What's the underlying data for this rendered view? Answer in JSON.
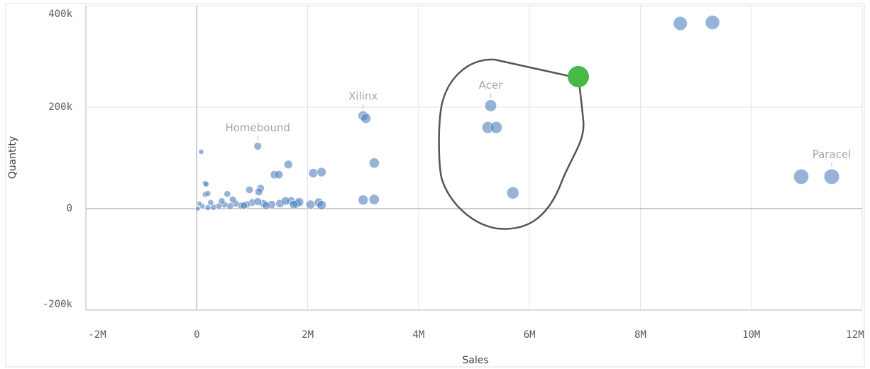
{
  "chart_data": {
    "type": "scatter",
    "x_label": "Sales",
    "y_label": "Quantity",
    "color": "#4f81bd",
    "xlim": [
      -2000000,
      12000000
    ],
    "xticks": [
      {
        "value": -2000000,
        "label": "-2M"
      },
      0,
      {
        "value": 2000000,
        "label": "2M"
      },
      {
        "value": 4000000,
        "label": "4M"
      },
      {
        "value": 6000000,
        "label": "6M"
      },
      {
        "value": 8000000,
        "label": "8M"
      },
      {
        "value": 10000000,
        "label": "10M"
      },
      {
        "value": 12000000,
        "label": "12M"
      }
    ],
    "ylim": [
      -200000,
      400000
    ],
    "yticks": [
      {
        "value": -200000,
        "label": "-200k"
      },
      0,
      {
        "value": 200000,
        "label": "200k"
      },
      {
        "value": 400000,
        "label": "400k"
      }
    ],
    "grid": true,
    "x": [
      8720000,
      9300000,
      10900000,
      11450000,
      5300000,
      5250000,
      5400000,
      5700000,
      3000000,
      3050000,
      3200000,
      3000000,
      3200000,
      2100000,
      2250000,
      1650000,
      1400000,
      1480000,
      1100000,
      1150000,
      1120000,
      950000,
      550000,
      150000,
      170000,
      80000,
      150000,
      200000,
      2050000,
      2200000,
      2250000,
      1700000,
      1800000,
      1850000,
      1500000,
      1350000,
      1200000,
      1000000,
      900000,
      800000,
      700000,
      600000,
      500000,
      400000,
      300000,
      200000,
      100000,
      50000,
      20000,
      250000,
      450000,
      650000,
      850000,
      1100000,
      1250000,
      1600000,
      1750000
    ],
    "y": [
      365000,
      367000,
      63000,
      63000,
      203000,
      160000,
      160000,
      31000,
      183000,
      178000,
      90000,
      17000,
      18000,
      70000,
      72000,
      87000,
      67000,
      67000,
      123000,
      40000,
      33000,
      37000,
      29000,
      50000,
      48000,
      112000,
      28000,
      30000,
      8000,
      12000,
      7000,
      15000,
      10000,
      13000,
      10000,
      8000,
      10000,
      12000,
      8000,
      6000,
      10000,
      5000,
      8000,
      5000,
      3000,
      2000,
      5000,
      10000,
      0,
      12000,
      15000,
      18000,
      6000,
      14000,
      6000,
      15000,
      8000
    ],
    "annotations": [
      {
        "text": "Homebound",
        "point": 18
      },
      {
        "text": "Xilinx",
        "point": 8
      },
      {
        "text": "Acer",
        "point": 4
      },
      {
        "text": "Paracel",
        "point": 3
      }
    ]
  }
}
